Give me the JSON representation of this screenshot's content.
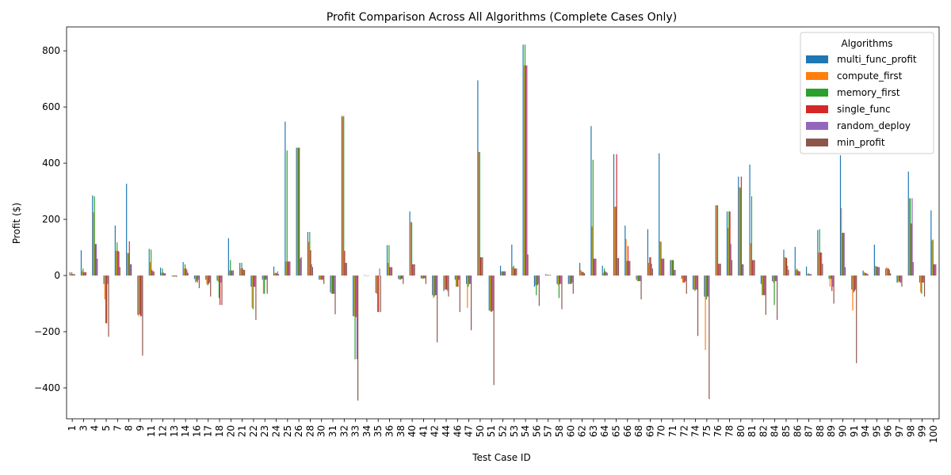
{
  "chart_data": {
    "type": "bar",
    "title": "Profit Comparison Across All Algorithms (Complete Cases Only)",
    "xlabel": "Test Case ID",
    "ylabel": "Profit ($)",
    "ylim": [
      -510,
      885
    ],
    "yticks": [
      -400,
      -200,
      0,
      200,
      400,
      600,
      800
    ],
    "ytick_labels": [
      "−400",
      "−200",
      "0",
      "200",
      "400",
      "600",
      "800"
    ],
    "grid": false,
    "legend": {
      "title": "Algorithms",
      "placement": "top-right"
    },
    "categories": [
      "1",
      "3",
      "4",
      "5",
      "7",
      "8",
      "9",
      "11",
      "12",
      "13",
      "14",
      "16",
      "17",
      "18",
      "20",
      "21",
      "22",
      "23",
      "24",
      "25",
      "26",
      "28",
      "30",
      "31",
      "32",
      "33",
      "34",
      "35",
      "36",
      "38",
      "40",
      "41",
      "42",
      "44",
      "46",
      "47",
      "50",
      "51",
      "52",
      "53",
      "54",
      "56",
      "57",
      "58",
      "60",
      "62",
      "63",
      "64",
      "65",
      "66",
      "68",
      "69",
      "70",
      "71",
      "72",
      "74",
      "75",
      "76",
      "78",
      "80",
      "81",
      "82",
      "84",
      "85",
      "86",
      "87",
      "88",
      "89",
      "90",
      "91",
      "94",
      "95",
      "96",
      "97",
      "98",
      "99",
      "100"
    ],
    "series": [
      {
        "name": "multi_func_profit",
        "color": "#1f77b4",
        "values": [
          12,
          90,
          285,
          -30,
          178,
          327,
          -140,
          95,
          28,
          -2,
          48,
          -12,
          -15,
          -18,
          133,
          45,
          -40,
          -15,
          32,
          548,
          455,
          155,
          -15,
          -60,
          568,
          -145,
          2,
          -62,
          108,
          -12,
          228,
          -10,
          -70,
          -55,
          -15,
          -30,
          695,
          -125,
          35,
          110,
          822,
          -40,
          5,
          -30,
          -30,
          45,
          532,
          35,
          432,
          178,
          -15,
          165,
          435,
          55,
          -12,
          -50,
          -75,
          250,
          228,
          352,
          395,
          -30,
          -20,
          92,
          102,
          32,
          162,
          -12,
          428,
          -50,
          18,
          110,
          25,
          -25,
          370,
          -25,
          232
        ]
      },
      {
        "name": "compute_first",
        "color": "#ff7f0e",
        "values": [
          5,
          15,
          225,
          -85,
          88,
          80,
          -145,
          48,
          10,
          -3,
          25,
          -25,
          -30,
          -22,
          18,
          25,
          -115,
          -65,
          8,
          50,
          455,
          120,
          -15,
          -65,
          565,
          -145,
          0,
          -65,
          45,
          -15,
          190,
          -10,
          -80,
          -50,
          -40,
          -115,
          440,
          -125,
          15,
          30,
          748,
          -35,
          2,
          -35,
          -30,
          20,
          175,
          10,
          245,
          130,
          -20,
          45,
          122,
          55,
          -25,
          -50,
          -265,
          250,
          170,
          315,
          115,
          -70,
          -25,
          65,
          20,
          5,
          82,
          -40,
          240,
          -125,
          12,
          35,
          30,
          -25,
          275,
          -60,
          125
        ]
      },
      {
        "name": "memory_first",
        "color": "#2ca02c",
        "values": [
          12,
          25,
          282,
          -170,
          118,
          80,
          -138,
          92,
          25,
          -5,
          40,
          -20,
          -35,
          -80,
          55,
          45,
          -120,
          -65,
          10,
          445,
          455,
          155,
          -15,
          -65,
          568,
          -298,
          0,
          -130,
          108,
          -15,
          190,
          -12,
          -75,
          -50,
          -40,
          -40,
          440,
          -130,
          15,
          35,
          822,
          -70,
          3,
          -80,
          -30,
          15,
          412,
          25,
          245,
          52,
          -20,
          65,
          120,
          55,
          -25,
          -55,
          -85,
          250,
          228,
          312,
          282,
          -70,
          -105,
          65,
          25,
          8,
          165,
          -12,
          152,
          -60,
          10,
          32,
          25,
          -20,
          275,
          -65,
          128
        ]
      },
      {
        "name": "single_func",
        "color": "#d62728",
        "values": [
          5,
          12,
          112,
          -170,
          88,
          122,
          -145,
          20,
          10,
          -3,
          25,
          -25,
          -30,
          -105,
          18,
          25,
          -40,
          -15,
          8,
          50,
          455,
          90,
          -15,
          -65,
          88,
          -148,
          0,
          -130,
          30,
          -12,
          40,
          -10,
          -70,
          -50,
          -40,
          -30,
          65,
          -128,
          15,
          25,
          748,
          -35,
          2,
          -30,
          -30,
          12,
          60,
          15,
          432,
          105,
          -20,
          65,
          60,
          55,
          -25,
          -50,
          -75,
          42,
          228,
          352,
          55,
          -70,
          -20,
          62,
          18,
          5,
          82,
          -55,
          152,
          -55,
          8,
          32,
          25,
          -25,
          185,
          -25,
          40
        ]
      },
      {
        "name": "random_deploy",
        "color": "#9467bd",
        "values": [
          5,
          12,
          112,
          -30,
          85,
          40,
          -145,
          15,
          8,
          -3,
          20,
          -15,
          -25,
          -25,
          18,
          20,
          -40,
          -15,
          15,
          50,
          60,
          40,
          -15,
          -65,
          45,
          -298,
          0,
          25,
          30,
          -12,
          40,
          -10,
          -70,
          -55,
          -15,
          -30,
          65,
          -125,
          15,
          25,
          748,
          -30,
          2,
          -30,
          -25,
          12,
          60,
          12,
          62,
          52,
          -20,
          42,
          60,
          20,
          -20,
          -50,
          -75,
          42,
          112,
          40,
          55,
          -70,
          -20,
          35,
          15,
          5,
          82,
          -40,
          152,
          -50,
          8,
          30,
          20,
          -25,
          275,
          -25,
          40
        ]
      },
      {
        "name": "min_profit",
        "color": "#8c564b",
        "values": [
          5,
          12,
          60,
          -218,
          30,
          40,
          -285,
          15,
          8,
          -5,
          10,
          -45,
          -75,
          -105,
          18,
          20,
          -158,
          -65,
          5,
          50,
          65,
          30,
          -30,
          -138,
          45,
          -445,
          0,
          -130,
          30,
          -30,
          40,
          -30,
          -238,
          -75,
          -130,
          -195,
          65,
          -390,
          15,
          25,
          75,
          -108,
          2,
          -120,
          -65,
          8,
          60,
          10,
          62,
          52,
          -85,
          25,
          60,
          20,
          -65,
          -215,
          -440,
          42,
          55,
          40,
          55,
          -140,
          -158,
          20,
          15,
          5,
          42,
          -100,
          30,
          -312,
          5,
          30,
          8,
          -40,
          48,
          -75,
          40
        ]
      }
    ]
  }
}
